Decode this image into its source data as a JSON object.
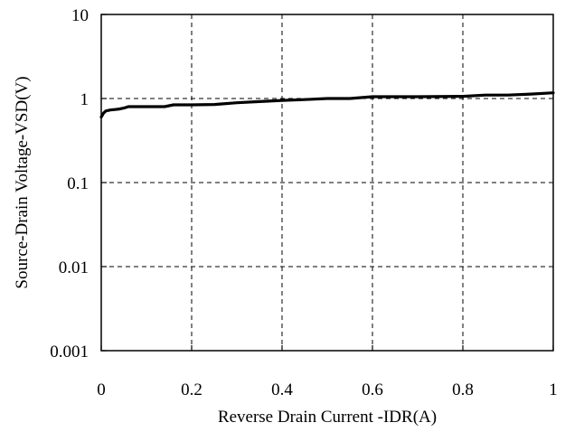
{
  "chart_data": {
    "type": "line",
    "title": "",
    "xlabel": "Reverse Drain Current -IDR(A)",
    "ylabel": "Source-Drain Voltage-VSD(V)",
    "x_scale": "linear",
    "y_scale": "log",
    "xlim": [
      0,
      1
    ],
    "ylim": [
      0.001,
      10
    ],
    "x_ticks": [
      0,
      0.2,
      0.4,
      0.6,
      0.8,
      1
    ],
    "x_tick_labels": [
      "0",
      "0.2",
      "0.4",
      "0.6",
      "0.8",
      "1"
    ],
    "y_ticks": [
      0.001,
      0.01,
      0.1,
      1,
      10
    ],
    "y_tick_labels": [
      "0.001",
      "0.01",
      "0.1",
      "1",
      "10"
    ],
    "grid": "dashed",
    "legend": "none",
    "line_color": "#000000",
    "series": [
      {
        "x": [
          0,
          0.005,
          0.01,
          0.02,
          0.03,
          0.04,
          0.05,
          0.06,
          0.08,
          0.1,
          0.12,
          0.14,
          0.16,
          0.2,
          0.25,
          0.3,
          0.35,
          0.4,
          0.45,
          0.5,
          0.55,
          0.6,
          0.7,
          0.8,
          0.85,
          0.9,
          0.95,
          1.0
        ],
        "y": [
          0.6,
          0.67,
          0.71,
          0.73,
          0.74,
          0.75,
          0.77,
          0.8,
          0.8,
          0.8,
          0.8,
          0.8,
          0.84,
          0.84,
          0.85,
          0.89,
          0.92,
          0.95,
          0.97,
          1.0,
          1.0,
          1.05,
          1.05,
          1.06,
          1.1,
          1.1,
          1.13,
          1.17
        ]
      }
    ]
  }
}
